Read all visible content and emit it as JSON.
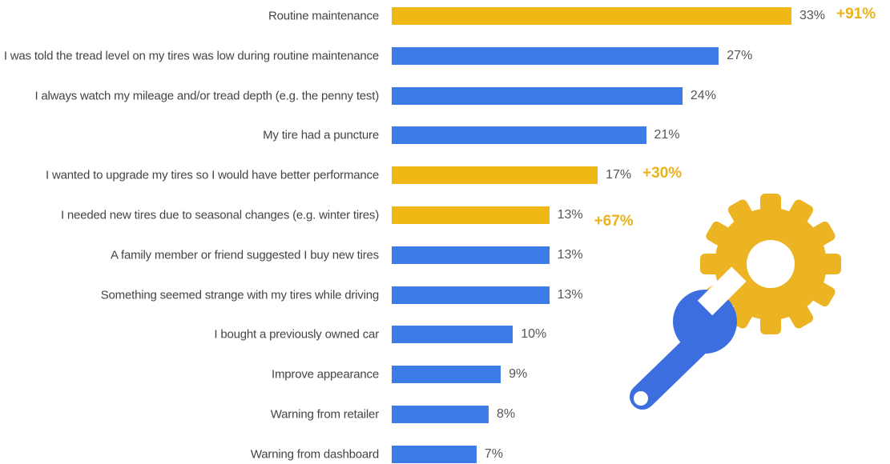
{
  "chart_data": {
    "type": "bar",
    "orientation": "horizontal",
    "categories": [
      "Routine maintenance",
      "I was told the tread level on my tires was low during routine maintenance",
      "I always watch my mileage and/or tread depth (e.g. the penny test)",
      "My tire had a puncture",
      "I wanted to upgrade my tires so I would have better performance",
      "I needed new tires due to seasonal changes (e.g. winter tires)",
      "A family member or friend suggested I buy new tires",
      "Something seemed strange with my tires while driving",
      "I bought a previously owned car",
      "Improve appearance",
      "Warning from retailer",
      "Warning from dashboard"
    ],
    "values": [
      33,
      27,
      24,
      21,
      17,
      13,
      13,
      13,
      10,
      9,
      8,
      7
    ],
    "value_labels": [
      "33%",
      "27%",
      "24%",
      "21%",
      "17%",
      "13%",
      "13%",
      "13%",
      "10%",
      "9%",
      "8%",
      "7%"
    ],
    "colors": [
      "#f0b814",
      "#3d7be8",
      "#3d7be8",
      "#3d7be8",
      "#f0b814",
      "#f0b814",
      "#3d7be8",
      "#3d7be8",
      "#3d7be8",
      "#3d7be8",
      "#3d7be8",
      "#3d7be8"
    ],
    "annotations": [
      "+91%",
      null,
      null,
      null,
      "+30%",
      "+67%",
      null,
      null,
      null,
      null,
      null,
      null
    ]
  }
}
